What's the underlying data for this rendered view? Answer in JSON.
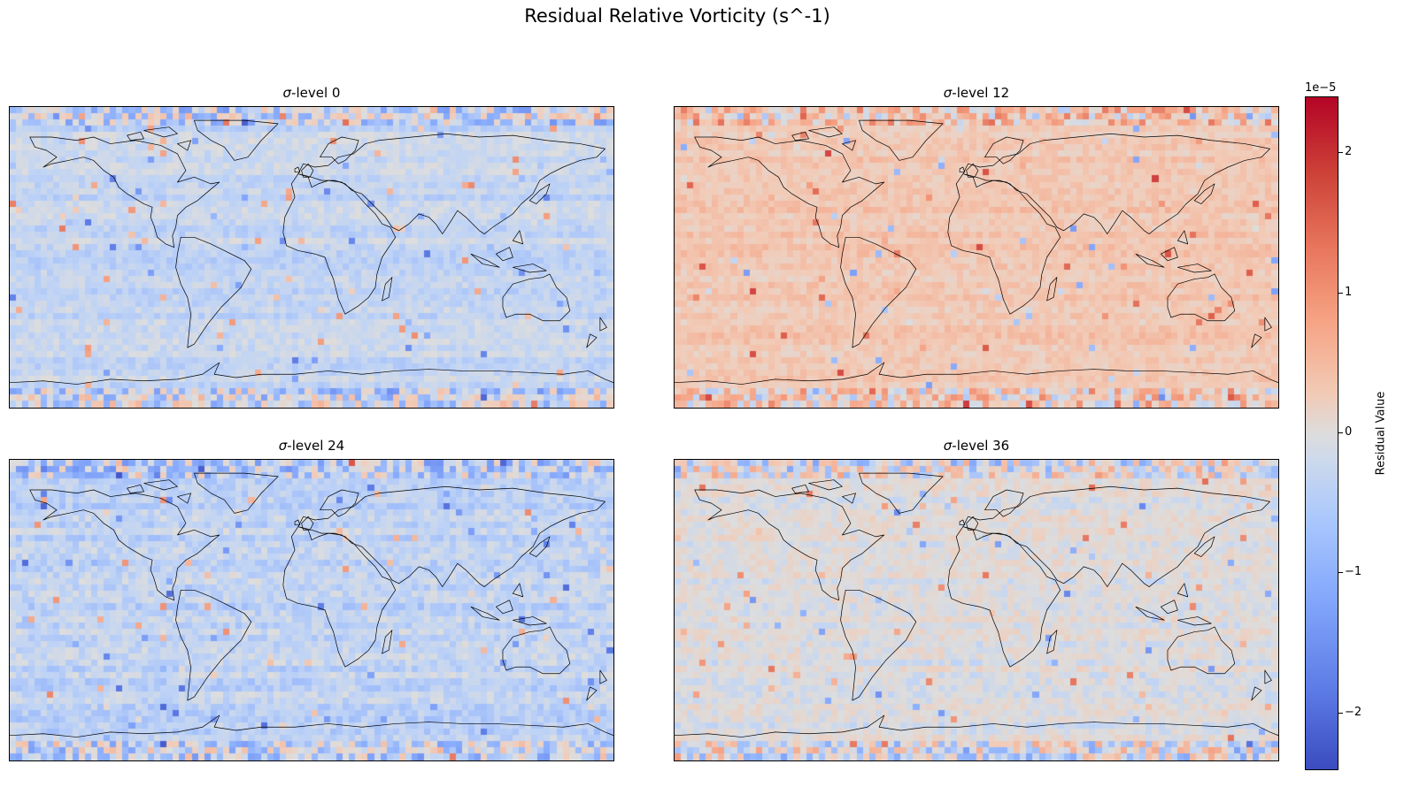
{
  "title": "Residual Relative Vorticity (s^-1)",
  "panels": [
    {
      "label_prefix": "σ",
      "label": "-level 0",
      "bias": -0.25,
      "noise": 0.35
    },
    {
      "label_prefix": "σ",
      "label": "-level 12",
      "bias": 0.45,
      "noise": 0.4
    },
    {
      "label_prefix": "σ",
      "label": "-level 24",
      "bias": -0.3,
      "noise": 0.45
    },
    {
      "label_prefix": "σ",
      "label": "-level 36",
      "bias": 0.0,
      "noise": 0.45
    }
  ],
  "colorbar": {
    "label": "Residual Value",
    "offset_text": "1e−5",
    "colormap": "coolwarm",
    "range": [
      -2.4,
      2.4
    ],
    "ticks": [
      {
        "value": 2,
        "label": "2"
      },
      {
        "value": 1,
        "label": "1"
      },
      {
        "value": 0,
        "label": "0"
      },
      {
        "value": -1,
        "label": "−1"
      },
      {
        "value": -2,
        "label": "−2"
      }
    ]
  },
  "map": {
    "projection": "PlateCarree",
    "features": [
      "coastlines"
    ]
  }
}
